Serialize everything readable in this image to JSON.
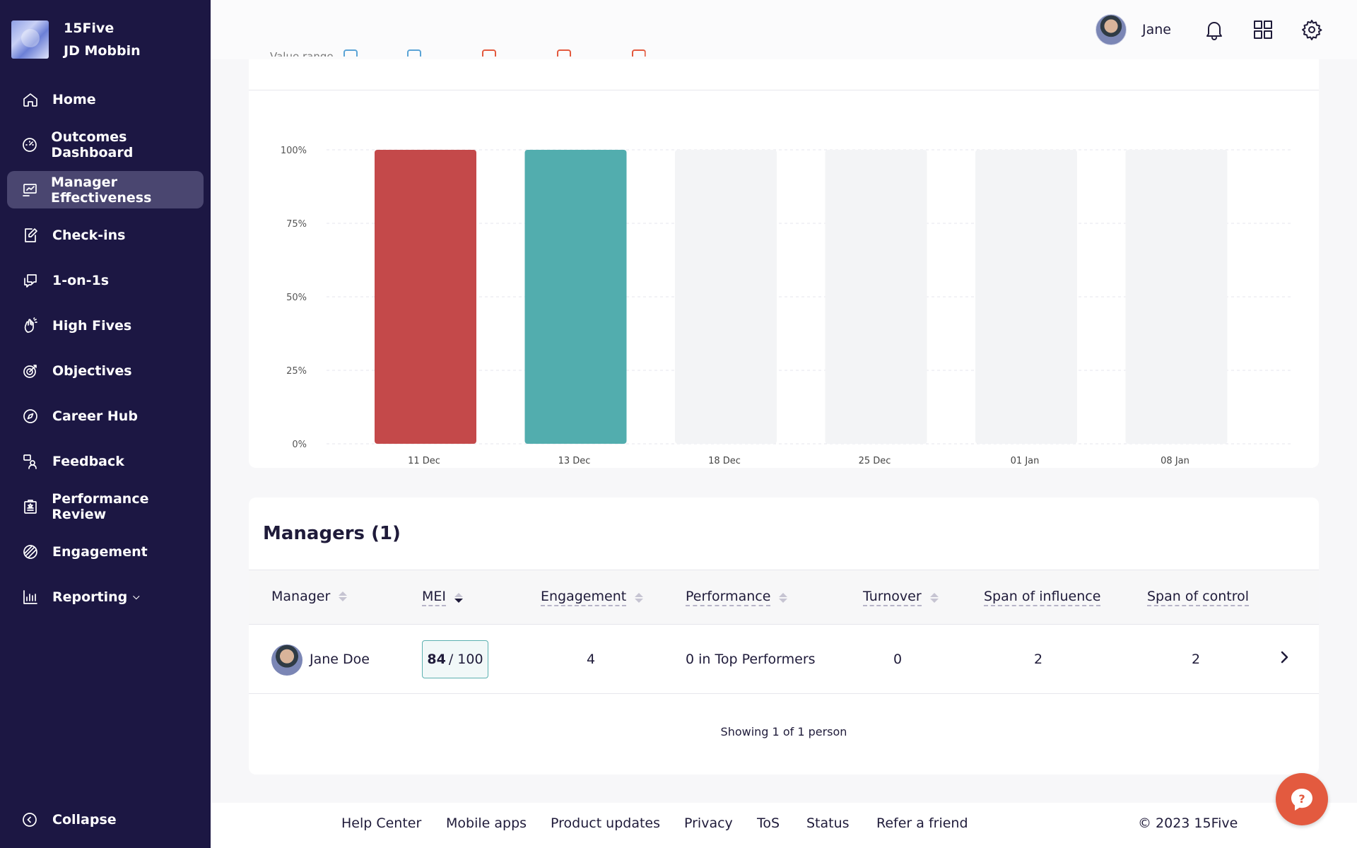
{
  "org": {
    "company": "15Five",
    "user": "JD Mobbin"
  },
  "nav": [
    {
      "label": "Home",
      "icon": "home-icon"
    },
    {
      "label": "Outcomes Dashboard",
      "icon": "gauge-icon"
    },
    {
      "label": "Manager Effectiveness",
      "icon": "manager-chart-icon",
      "active": true
    },
    {
      "label": "Check-ins",
      "icon": "edit-note-icon"
    },
    {
      "label": "1-on-1s",
      "icon": "chat-bubbles-icon"
    },
    {
      "label": "High Fives",
      "icon": "high-five-icon"
    },
    {
      "label": "Objectives",
      "icon": "target-icon"
    },
    {
      "label": "Career Hub",
      "icon": "compass-icon"
    },
    {
      "label": "Feedback",
      "icon": "feedback-icon"
    },
    {
      "label": "Performance Review",
      "icon": "clipboard-star-icon"
    },
    {
      "label": "Engagement",
      "icon": "engagement-icon"
    },
    {
      "label": "Reporting",
      "icon": "bar-chart-icon",
      "dropdown": true
    }
  ],
  "collapse_label": "Collapse",
  "topbar": {
    "user_name": "Jane"
  },
  "chart_data": {
    "type": "bar",
    "categories": [
      "11 Dec",
      "13 Dec",
      "18 Dec",
      "25 Dec",
      "01 Jan",
      "08 Jan"
    ],
    "values": [
      100,
      100,
      null,
      null,
      null,
      null
    ],
    "colors": [
      "#c4494a",
      "#52adae",
      "#f3f4f6",
      "#f3f4f6",
      "#f3f4f6",
      "#f3f4f6"
    ],
    "ylim": [
      0,
      100
    ],
    "yticks": [
      "0%",
      "25%",
      "50%",
      "75%",
      "100%"
    ],
    "ytick_values": [
      0,
      25,
      50,
      75,
      100
    ],
    "grid": true,
    "legend_label": "Value range",
    "legend_colors": [
      "#5ba4d6",
      "#5ba4d6",
      "#e35a3f",
      "#e35a3f",
      "#e35a3f"
    ]
  },
  "managers": {
    "title": "Managers (1)",
    "columns": [
      "Manager",
      "MEI",
      "Engagement",
      "Performance",
      "Turnover",
      "Span of influence",
      "Span of control"
    ],
    "rows": [
      {
        "name": "Jane Doe",
        "mei_score": "84",
        "mei_total": "/ 100",
        "engagement": "4",
        "performance": "0 in Top Performers",
        "turnover": "0",
        "span_influence": "2",
        "span_control": "2"
      }
    ],
    "showing": "Showing 1 of 1 person"
  },
  "footer": {
    "links": [
      "Help Center",
      "Mobile apps",
      "Product updates",
      "Privacy",
      "ToS",
      "Status",
      "Refer a friend"
    ],
    "copyright": "© 2023 15Five"
  },
  "colors": {
    "sidebar": "#1c1743",
    "accent_help": "#e35a3f",
    "bar_red": "#c4494a",
    "bar_teal": "#52adae"
  }
}
